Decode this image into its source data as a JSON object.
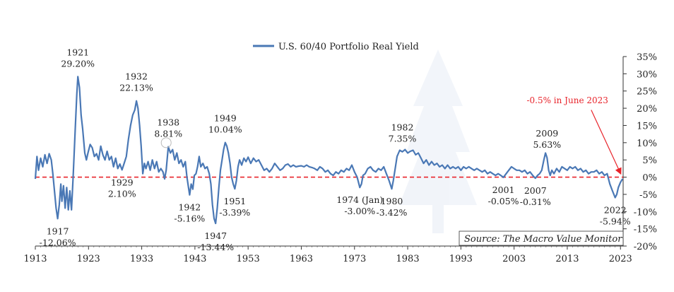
{
  "chart_data": {
    "type": "line",
    "legend_position": "top-center",
    "grid": false,
    "x_label": "",
    "y_label": "",
    "x_ticks": [
      "1913",
      "1923",
      "1933",
      "1943",
      "1953",
      "1963",
      "1973",
      "1983",
      "1993",
      "2003",
      "2013",
      "2023"
    ],
    "y_ticks": [
      "35%",
      "30%",
      "25%",
      "20%",
      "15%",
      "10%",
      "5%",
      "0%",
      "-5%",
      "-10%",
      "-15%",
      "-20%"
    ],
    "xlim": [
      1913,
      2023.5
    ],
    "ylim": [
      -20,
      35
    ],
    "reference_line": {
      "y": 0,
      "style": "dashed",
      "color": "#e8242b"
    },
    "series": [
      {
        "name": "U.S. 60/40 Portfolio Real Yield",
        "color": "#4a78b5",
        "points": [
          [
            1913.0,
            -0.5
          ],
          [
            1913.3,
            6.0
          ],
          [
            1913.6,
            2.0
          ],
          [
            1914.0,
            5.5
          ],
          [
            1914.4,
            3.0
          ],
          [
            1914.8,
            6.5
          ],
          [
            1915.2,
            4.0
          ],
          [
            1915.6,
            6.8
          ],
          [
            1916.0,
            5.0
          ],
          [
            1916.3,
            1.0
          ],
          [
            1916.6,
            -4.0
          ],
          [
            1916.9,
            -9.0
          ],
          [
            1917.2,
            -12.06
          ],
          [
            1917.5,
            -8.0
          ],
          [
            1917.8,
            -2.0
          ],
          [
            1918.0,
            -7.0
          ],
          [
            1918.3,
            -2.5
          ],
          [
            1918.6,
            -9.0
          ],
          [
            1918.9,
            -3.0
          ],
          [
            1919.2,
            -9.5
          ],
          [
            1919.5,
            -4.0
          ],
          [
            1919.8,
            -9.5
          ],
          [
            1920.1,
            0.0
          ],
          [
            1920.5,
            14.0
          ],
          [
            1920.8,
            24.0
          ],
          [
            1921.0,
            29.2
          ],
          [
            1921.3,
            26.0
          ],
          [
            1921.6,
            18.0
          ],
          [
            1921.9,
            14.0
          ],
          [
            1922.3,
            7.0
          ],
          [
            1922.6,
            5.0
          ],
          [
            1922.9,
            7.0
          ],
          [
            1923.3,
            9.5
          ],
          [
            1923.7,
            8.5
          ],
          [
            1924.1,
            6.0
          ],
          [
            1924.5,
            6.8
          ],
          [
            1924.9,
            5.0
          ],
          [
            1925.3,
            9.0
          ],
          [
            1925.7,
            6.5
          ],
          [
            1926.1,
            5.0
          ],
          [
            1926.5,
            7.5
          ],
          [
            1926.9,
            5.0
          ],
          [
            1927.3,
            6.0
          ],
          [
            1927.7,
            3.0
          ],
          [
            1928.1,
            5.5
          ],
          [
            1928.5,
            2.5
          ],
          [
            1928.9,
            3.8
          ],
          [
            1929.3,
            2.1
          ],
          [
            1929.7,
            4.0
          ],
          [
            1930.1,
            6.0
          ],
          [
            1930.5,
            11.0
          ],
          [
            1930.9,
            15.0
          ],
          [
            1931.3,
            18.0
          ],
          [
            1931.7,
            19.5
          ],
          [
            1932.0,
            22.13
          ],
          [
            1932.3,
            20.0
          ],
          [
            1932.6,
            15.0
          ],
          [
            1932.9,
            9.0
          ],
          [
            1933.2,
            1.0
          ],
          [
            1933.5,
            4.0
          ],
          [
            1933.8,
            2.5
          ],
          [
            1934.2,
            4.5
          ],
          [
            1934.6,
            2.0
          ],
          [
            1935.0,
            5.0
          ],
          [
            1935.4,
            2.5
          ],
          [
            1935.8,
            4.5
          ],
          [
            1936.2,
            1.5
          ],
          [
            1936.6,
            2.5
          ],
          [
            1937.0,
            1.5
          ],
          [
            1937.3,
            -0.5
          ],
          [
            1937.6,
            2.0
          ],
          [
            1938.0,
            8.81
          ],
          [
            1938.4,
            7.0
          ],
          [
            1938.8,
            8.0
          ],
          [
            1939.2,
            5.0
          ],
          [
            1939.6,
            7.0
          ],
          [
            1940.0,
            4.0
          ],
          [
            1940.4,
            5.0
          ],
          [
            1940.8,
            3.0
          ],
          [
            1941.2,
            4.5
          ],
          [
            1941.5,
            0.0
          ],
          [
            1941.8,
            -3.0
          ],
          [
            1942.0,
            -5.16
          ],
          [
            1942.3,
            -2.0
          ],
          [
            1942.6,
            -3.5
          ],
          [
            1942.9,
            0.5
          ],
          [
            1943.2,
            1.0
          ],
          [
            1943.5,
            3.0
          ],
          [
            1943.8,
            6.0
          ],
          [
            1944.1,
            3.0
          ],
          [
            1944.5,
            4.0
          ],
          [
            1944.9,
            2.5
          ],
          [
            1945.3,
            3.0
          ],
          [
            1945.7,
            1.0
          ],
          [
            1946.0,
            -2.0
          ],
          [
            1946.3,
            -8.0
          ],
          [
            1946.6,
            -12.0
          ],
          [
            1946.9,
            -13.44
          ],
          [
            1947.2,
            -9.0
          ],
          [
            1947.5,
            -3.0
          ],
          [
            1947.8,
            2.0
          ],
          [
            1948.1,
            5.0
          ],
          [
            1948.4,
            8.0
          ],
          [
            1948.7,
            10.04
          ],
          [
            1949.0,
            9.0
          ],
          [
            1949.3,
            7.0
          ],
          [
            1949.6,
            4.0
          ],
          [
            1949.9,
            0.0
          ],
          [
            1950.2,
            -2.0
          ],
          [
            1950.5,
            -3.39
          ],
          [
            1950.8,
            -1.0
          ],
          [
            1951.1,
            3.0
          ],
          [
            1951.4,
            5.0
          ],
          [
            1951.8,
            3.5
          ],
          [
            1952.2,
            5.5
          ],
          [
            1952.6,
            4.5
          ],
          [
            1953.0,
            5.8
          ],
          [
            1953.5,
            4.0
          ],
          [
            1954.0,
            5.5
          ],
          [
            1954.5,
            4.5
          ],
          [
            1955.0,
            5.0
          ],
          [
            1955.5,
            3.5
          ],
          [
            1956.0,
            2.0
          ],
          [
            1956.5,
            2.5
          ],
          [
            1957.0,
            1.5
          ],
          [
            1957.5,
            2.5
          ],
          [
            1958.0,
            4.0
          ],
          [
            1958.5,
            3.0
          ],
          [
            1959.0,
            2.0
          ],
          [
            1959.5,
            2.5
          ],
          [
            1960.0,
            3.5
          ],
          [
            1960.5,
            3.8
          ],
          [
            1961.0,
            3.0
          ],
          [
            1961.5,
            3.5
          ],
          [
            1962.0,
            3.0
          ],
          [
            1962.5,
            3.2
          ],
          [
            1963.0,
            3.3
          ],
          [
            1963.5,
            3.0
          ],
          [
            1964.0,
            3.5
          ],
          [
            1964.5,
            3.0
          ],
          [
            1965.0,
            2.8
          ],
          [
            1965.5,
            2.5
          ],
          [
            1966.0,
            2.0
          ],
          [
            1966.5,
            3.0
          ],
          [
            1967.0,
            2.5
          ],
          [
            1967.5,
            1.5
          ],
          [
            1968.0,
            2.0
          ],
          [
            1968.5,
            1.0
          ],
          [
            1969.0,
            0.5
          ],
          [
            1969.5,
            1.5
          ],
          [
            1970.0,
            1.0
          ],
          [
            1970.5,
            2.0
          ],
          [
            1971.0,
            1.5
          ],
          [
            1971.5,
            2.5
          ],
          [
            1972.0,
            2.0
          ],
          [
            1972.5,
            3.5
          ],
          [
            1973.0,
            1.5
          ],
          [
            1973.5,
            0.0
          ],
          [
            1974.0,
            -3.0
          ],
          [
            1974.3,
            -2.0
          ],
          [
            1974.6,
            0.5
          ],
          [
            1975.0,
            1.0
          ],
          [
            1975.5,
            2.5
          ],
          [
            1976.0,
            3.0
          ],
          [
            1976.5,
            2.0
          ],
          [
            1977.0,
            1.5
          ],
          [
            1977.5,
            2.5
          ],
          [
            1978.0,
            2.0
          ],
          [
            1978.5,
            3.0
          ],
          [
            1979.0,
            1.0
          ],
          [
            1979.5,
            -1.0
          ],
          [
            1980.0,
            -3.42
          ],
          [
            1980.3,
            -1.0
          ],
          [
            1980.6,
            2.0
          ],
          [
            1981.0,
            6.0
          ],
          [
            1981.5,
            7.8
          ],
          [
            1982.0,
            7.35
          ],
          [
            1982.5,
            8.0
          ],
          [
            1983.0,
            7.0
          ],
          [
            1983.5,
            7.5
          ],
          [
            1984.0,
            7.8
          ],
          [
            1984.5,
            6.5
          ],
          [
            1985.0,
            7.0
          ],
          [
            1985.5,
            5.5
          ],
          [
            1986.0,
            4.0
          ],
          [
            1986.5,
            5.0
          ],
          [
            1987.0,
            3.5
          ],
          [
            1987.5,
            4.5
          ],
          [
            1988.0,
            3.5
          ],
          [
            1988.5,
            4.0
          ],
          [
            1989.0,
            3.0
          ],
          [
            1989.5,
            3.5
          ],
          [
            1990.0,
            2.5
          ],
          [
            1990.5,
            3.5
          ],
          [
            1991.0,
            2.5
          ],
          [
            1991.5,
            3.0
          ],
          [
            1992.0,
            2.5
          ],
          [
            1992.5,
            3.0
          ],
          [
            1993.0,
            2.0
          ],
          [
            1993.5,
            3.0
          ],
          [
            1994.0,
            2.5
          ],
          [
            1994.5,
            3.0
          ],
          [
            1995.0,
            2.5
          ],
          [
            1995.5,
            2.0
          ],
          [
            1996.0,
            2.5
          ],
          [
            1996.5,
            2.0
          ],
          [
            1997.0,
            1.5
          ],
          [
            1997.5,
            2.0
          ],
          [
            1998.0,
            1.0
          ],
          [
            1998.5,
            1.5
          ],
          [
            1999.0,
            1.0
          ],
          [
            1999.5,
            0.5
          ],
          [
            2000.0,
            1.0
          ],
          [
            2000.5,
            0.5
          ],
          [
            2001.0,
            -0.05
          ],
          [
            2001.5,
            1.0
          ],
          [
            2002.0,
            2.0
          ],
          [
            2002.5,
            3.0
          ],
          [
            2003.0,
            2.5
          ],
          [
            2003.5,
            2.0
          ],
          [
            2004.0,
            2.0
          ],
          [
            2004.5,
            1.5
          ],
          [
            2005.0,
            2.0
          ],
          [
            2005.5,
            1.0
          ],
          [
            2006.0,
            1.5
          ],
          [
            2006.5,
            0.5
          ],
          [
            2007.0,
            -0.31
          ],
          [
            2007.4,
            0.5
          ],
          [
            2007.8,
            1.0
          ],
          [
            2008.2,
            2.0
          ],
          [
            2008.6,
            5.0
          ],
          [
            2008.9,
            7.0
          ],
          [
            2009.2,
            5.63
          ],
          [
            2009.5,
            2.0
          ],
          [
            2009.8,
            0.5
          ],
          [
            2010.1,
            2.0
          ],
          [
            2010.5,
            1.0
          ],
          [
            2011.0,
            2.5
          ],
          [
            2011.5,
            1.5
          ],
          [
            2012.0,
            3.0
          ],
          [
            2012.5,
            2.5
          ],
          [
            2013.0,
            2.0
          ],
          [
            2013.5,
            3.0
          ],
          [
            2014.0,
            2.5
          ],
          [
            2014.5,
            3.0
          ],
          [
            2015.0,
            2.0
          ],
          [
            2015.5,
            2.5
          ],
          [
            2016.0,
            1.5
          ],
          [
            2016.5,
            2.0
          ],
          [
            2017.0,
            1.0
          ],
          [
            2017.5,
            1.5
          ],
          [
            2018.0,
            1.5
          ],
          [
            2018.5,
            2.0
          ],
          [
            2019.0,
            1.0
          ],
          [
            2019.5,
            1.5
          ],
          [
            2020.0,
            0.5
          ],
          [
            2020.5,
            1.0
          ],
          [
            2021.0,
            -2.0
          ],
          [
            2021.5,
            -4.0
          ],
          [
            2022.0,
            -5.94
          ],
          [
            2022.3,
            -5.0
          ],
          [
            2022.6,
            -3.0
          ],
          [
            2023.0,
            -1.5
          ],
          [
            2023.4,
            -0.5
          ]
        ]
      }
    ],
    "annotations": [
      {
        "year": "1917",
        "value": "-12.06%",
        "x": 1917.2,
        "y": -12.06,
        "label_side": "below"
      },
      {
        "year": "1921",
        "value": "29.20%",
        "x": 1921.0,
        "y": 29.2,
        "label_side": "above"
      },
      {
        "year": "1929",
        "value": "2.10%",
        "x": 1929.3,
        "y": 2.1,
        "label_side": "below"
      },
      {
        "year": "1932",
        "value": "22.13%",
        "x": 1932.0,
        "y": 22.13,
        "label_side": "above"
      },
      {
        "year": "1938",
        "value": "8.81%",
        "x": 1938.0,
        "y": 8.81,
        "label_side": "above"
      },
      {
        "year": "1942",
        "value": "-5.16%",
        "x": 1942.0,
        "y": -5.16,
        "label_side": "below"
      },
      {
        "year": "1947",
        "value": "-13.44%",
        "x": 1946.9,
        "y": -13.44,
        "label_side": "below"
      },
      {
        "year": "1949",
        "value": "10.04%",
        "x": 1948.7,
        "y": 10.04,
        "label_side": "above"
      },
      {
        "year": "1951",
        "value": "-3.39%",
        "x": 1950.5,
        "y": -3.39,
        "label_side": "below"
      },
      {
        "year": "1974 (Jan)",
        "value": "-3.00%",
        "x": 1974.0,
        "y": -3.0,
        "label_side": "below"
      },
      {
        "year": "1980",
        "value": "-3.42%",
        "x": 1980.0,
        "y": -3.42,
        "label_side": "below"
      },
      {
        "year": "1982",
        "value": "7.35%",
        "x": 1982.0,
        "y": 7.35,
        "label_side": "above"
      },
      {
        "year": "2001",
        "value": "-0.05%",
        "x": 2001.0,
        "y": -0.05,
        "label_side": "below"
      },
      {
        "year": "2007",
        "value": "-0.31%",
        "x": 2007.0,
        "y": -0.31,
        "label_side": "below"
      },
      {
        "year": "2009",
        "value": "5.63%",
        "x": 2009.2,
        "y": 5.63,
        "label_side": "above"
      },
      {
        "year": "2022",
        "value": "-5.94%",
        "x": 2022.0,
        "y": -5.94,
        "label_side": "below"
      }
    ],
    "callout": {
      "text": "-0.5% in June 2023",
      "color": "#e8242b",
      "x": 2023.4,
      "y": -0.5
    },
    "source": "Source: The Macro Value Monitor"
  }
}
